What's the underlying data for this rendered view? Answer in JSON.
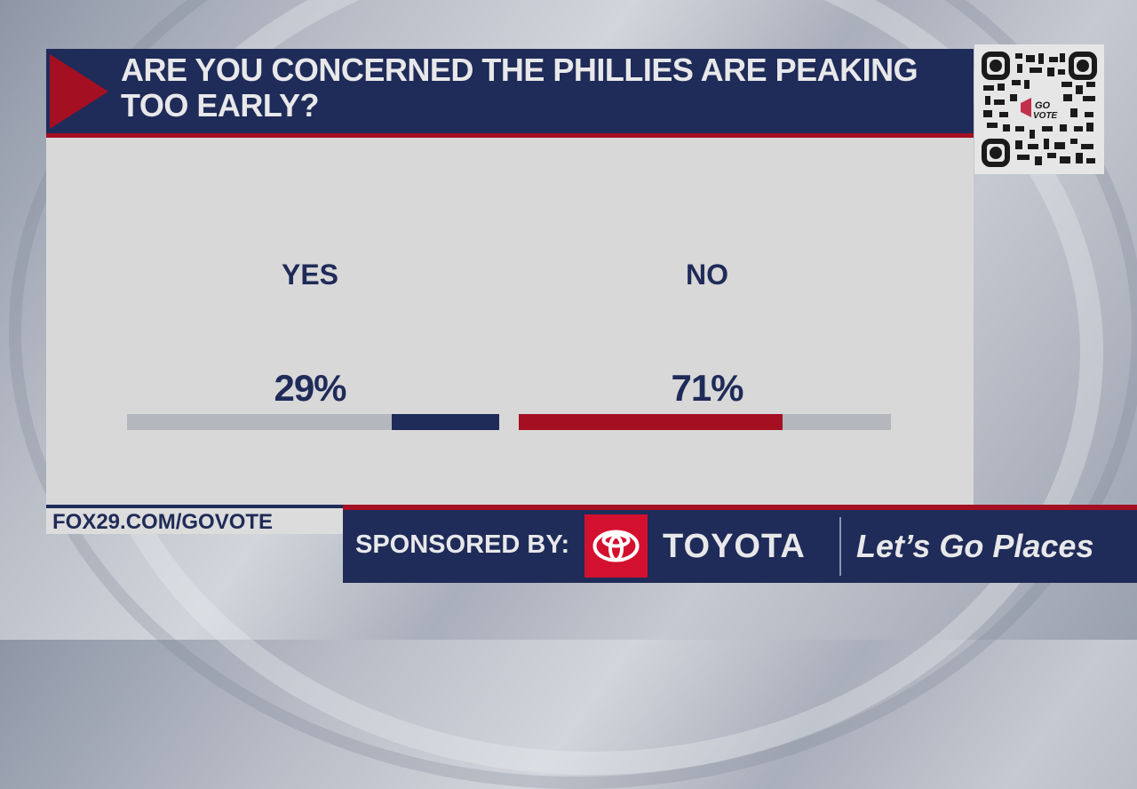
{
  "poll": {
    "question": "ARE YOU CONCERNED THE PHILLIES ARE PEAKING TOO EARLY?",
    "options": [
      {
        "label": "YES",
        "percent": "29%",
        "value": 29,
        "color": "#1f2b58"
      },
      {
        "label": "NO",
        "percent": "71%",
        "value": 71,
        "color": "#a50f22"
      }
    ]
  },
  "footer": {
    "url": "FOX29.COM/GOVOTE",
    "sponsor_label": "SPONSORED BY:",
    "sponsor_brand": "TOYOTA",
    "sponsor_tagline": "Let’s Go Places"
  },
  "qr_code": {
    "icon": "qr-code-icon",
    "center_text": "GO VOTE"
  },
  "colors": {
    "navy": "#1f2b58",
    "red": "#a50f22",
    "panel_bg": "#d8d8d8",
    "bar_track": "#b4b7be",
    "toyota_red": "#d4102f"
  },
  "chart_data": {
    "type": "bar",
    "title": "ARE YOU CONCERNED THE PHILLIES ARE PEAKING TOO EARLY?",
    "categories": [
      "YES",
      "NO"
    ],
    "values": [
      29,
      71
    ],
    "value_labels": [
      "29%",
      "71%"
    ],
    "xlabel": "",
    "ylabel": "",
    "ylim": [
      0,
      100
    ],
    "orientation": "horizontal",
    "colors": [
      "#1f2b58",
      "#a50f22"
    ],
    "grid": false,
    "legend": false
  }
}
